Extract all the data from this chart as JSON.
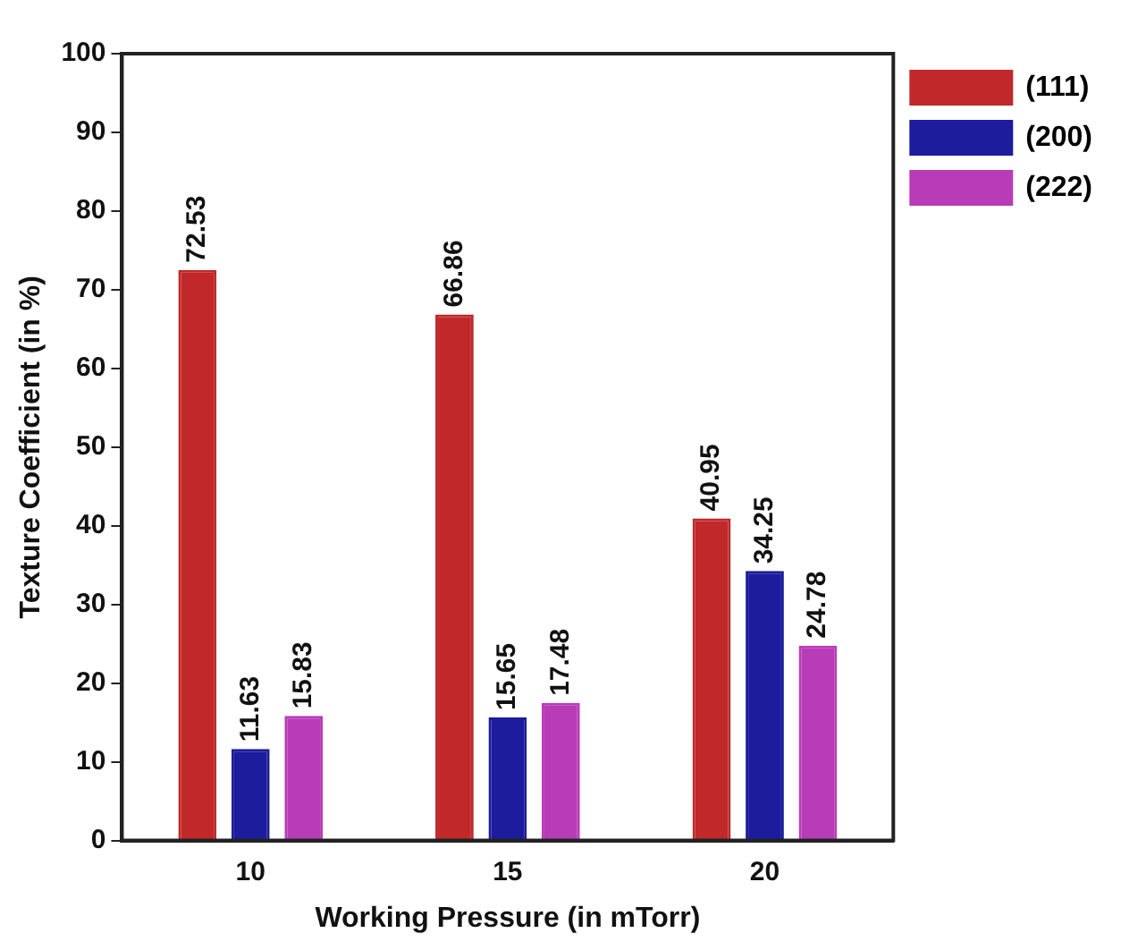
{
  "chart_data": {
    "type": "bar",
    "xlabel": "Working Pressure (in mTorr)",
    "ylabel": "Texture Coefficient (in %)",
    "categories": [
      "10",
      "15",
      "20"
    ],
    "series": [
      {
        "name": "(111)",
        "color": "#c0282a",
        "values": [
          72.53,
          66.86,
          40.95
        ]
      },
      {
        "name": "(200)",
        "color": "#1c1c9c",
        "values": [
          11.63,
          15.65,
          34.25
        ]
      },
      {
        "name": "(222)",
        "color": "#b83cb8",
        "values": [
          15.83,
          17.48,
          24.78
        ]
      }
    ],
    "ylim": [
      0,
      100
    ],
    "yticks": [
      0,
      10,
      20,
      30,
      40,
      50,
      60,
      70,
      80,
      90,
      100
    ],
    "grid": false,
    "legend": "top right",
    "data_labels": true
  }
}
